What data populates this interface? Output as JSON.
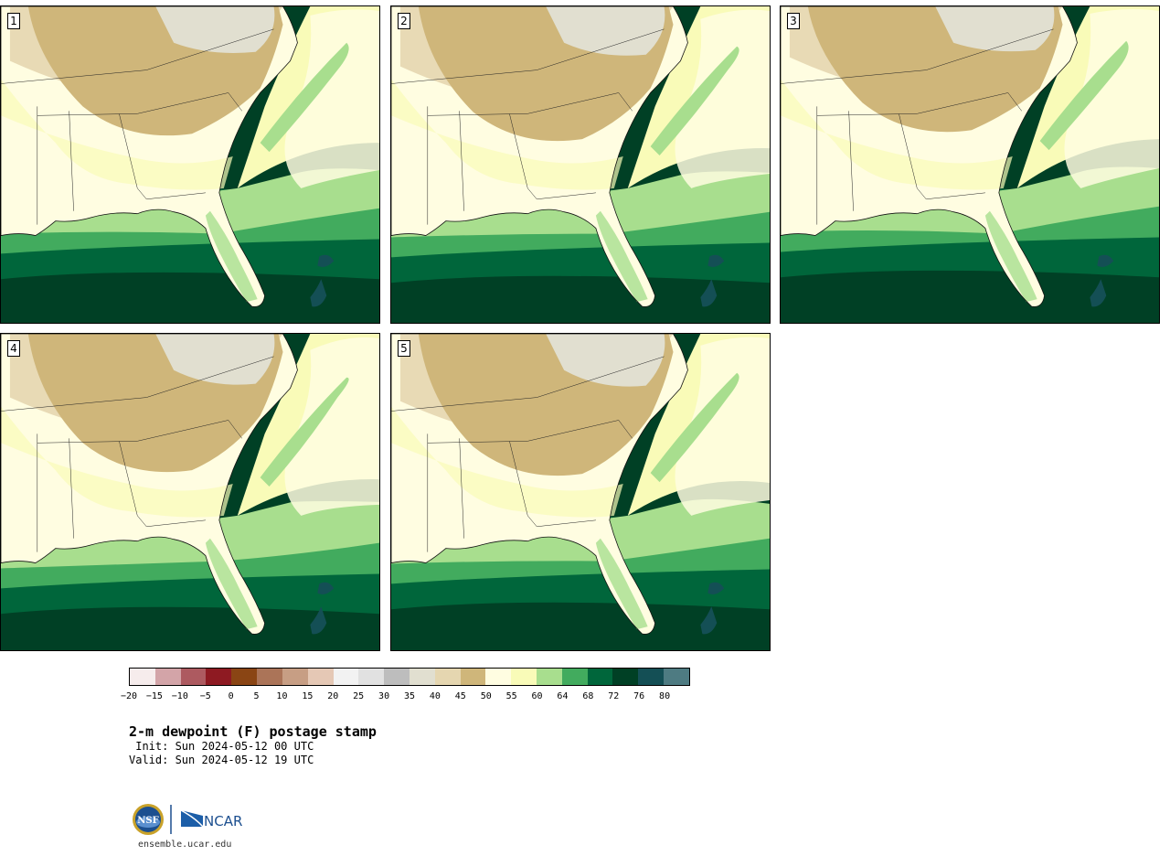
{
  "title": "2-m dewpoint (F) postage stamp",
  "init": " Init: Sun 2024-05-12 00 UTC",
  "valid": "Valid: Sun 2024-05-12 19 UTC",
  "footer_url": "ensemble.ucar.edu",
  "logos": {
    "nsf_text": "NSF",
    "ncar_text": "NCAR"
  },
  "panels": [
    {
      "label": "1"
    },
    {
      "label": "2"
    },
    {
      "label": "3"
    },
    {
      "label": "4"
    },
    {
      "label": "5"
    }
  ],
  "colorbar": {
    "colors": [
      "#f6ecec",
      "#d3a4a8",
      "#ad5a60",
      "#8e1a22",
      "#8a4514",
      "#ab7458",
      "#c79e84",
      "#e5c8b5",
      "#f2f2f2",
      "#e1e1e1",
      "#bdbdbd",
      "#e1dfd0",
      "#e5d6b0",
      "#cfb67a",
      "#fffde1",
      "#f9fbb8",
      "#a8de8e",
      "#42ab5e",
      "#00663b",
      "#004025",
      "#144f55",
      "#4e7b82"
    ],
    "ticks": [
      "−20",
      "−15",
      "−10",
      "−5",
      "0",
      "5",
      "10",
      "15",
      "20",
      "25",
      "30",
      "35",
      "40",
      "45",
      "50",
      "55",
      "60",
      "64",
      "68",
      "72",
      "76",
      "80"
    ]
  },
  "map_colors": {
    "tan": "#cfb67a",
    "grey_beige": "#e1dfd0",
    "light_tan": "#e5d6b0",
    "cream": "#fffde1",
    "pale_yellow": "#f9fbb8",
    "light_green": "#a8de8e",
    "green": "#42ab5e",
    "dark_green": "#00663b",
    "darkest_green": "#004025",
    "teal": "#144f55"
  }
}
